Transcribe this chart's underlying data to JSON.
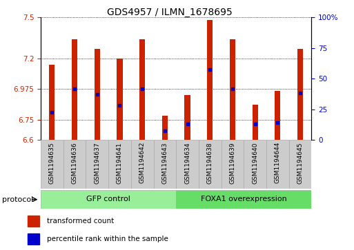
{
  "title": "GDS4957 / ILMN_1678695",
  "samples": [
    "GSM1194635",
    "GSM1194636",
    "GSM1194637",
    "GSM1194641",
    "GSM1194642",
    "GSM1194643",
    "GSM1194634",
    "GSM1194638",
    "GSM1194639",
    "GSM1194640",
    "GSM1194644",
    "GSM1194645"
  ],
  "bar_values": [
    7.155,
    7.34,
    7.27,
    7.2,
    7.34,
    6.78,
    6.93,
    7.48,
    7.34,
    6.86,
    6.96,
    7.27
  ],
  "blue_dot_values": [
    6.805,
    6.975,
    6.935,
    6.855,
    6.975,
    6.665,
    6.72,
    7.12,
    6.975,
    6.72,
    6.73,
    6.945
  ],
  "ylim_left": [
    6.6,
    7.5
  ],
  "ylim_right": [
    0,
    100
  ],
  "yticks_left": [
    6.6,
    6.75,
    6.975,
    7.2,
    7.5
  ],
  "ytick_labels_left": [
    "6.6",
    "6.75",
    "6.975",
    "7.2",
    "7.5"
  ],
  "yticks_right": [
    0,
    25,
    50,
    75,
    100
  ],
  "ytick_labels_right": [
    "0",
    "25",
    "50",
    "75",
    "100%"
  ],
  "bar_color": "#cc2200",
  "dot_color": "#0000cc",
  "bar_width": 0.25,
  "groups": [
    {
      "label": "GFP control",
      "start": 0,
      "end": 6,
      "color": "#99ee99"
    },
    {
      "label": "FOXA1 overexpression",
      "start": 6,
      "end": 12,
      "color": "#66dd66"
    }
  ],
  "protocol_label": "protocol",
  "legend_items": [
    {
      "color": "#cc2200",
      "label": "transformed count"
    },
    {
      "color": "#0000cc",
      "label": "percentile rank within the sample"
    }
  ],
  "grid_color": "black",
  "ybase": 6.6,
  "sample_box_color": "#cccccc",
  "fig_width": 5.13,
  "fig_height": 3.63
}
